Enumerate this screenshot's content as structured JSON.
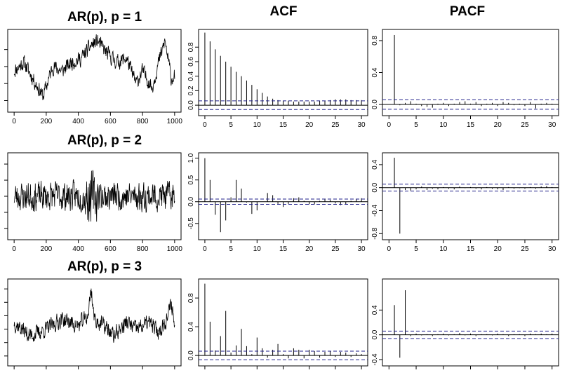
{
  "chart_data": [
    {
      "id": "ts1",
      "type": "line",
      "title": "AR(p), p = 1",
      "xlim": [
        0,
        1000
      ],
      "ylim": [
        -4,
        5
      ],
      "x_ticks": [
        0,
        200,
        400,
        600,
        800,
        1000
      ],
      "y_ticks": [
        -3,
        -1,
        1,
        3
      ],
      "x_tick_labels": [
        "0",
        "200",
        "400",
        "600",
        "800",
        "1000"
      ],
      "show_y_labels": false,
      "anchors": [
        [
          0,
          0.5
        ],
        [
          60,
          1.5
        ],
        [
          120,
          -0.5
        ],
        [
          180,
          -2.5
        ],
        [
          240,
          1.0
        ],
        [
          300,
          0.5
        ],
        [
          360,
          1.5
        ],
        [
          420,
          2.0
        ],
        [
          480,
          3.5
        ],
        [
          520,
          4.0
        ],
        [
          580,
          2.5
        ],
        [
          640,
          1.5
        ],
        [
          700,
          2.0
        ],
        [
          760,
          -1.0
        ],
        [
          800,
          0.5
        ],
        [
          860,
          -1.5
        ],
        [
          900,
          1.5
        ],
        [
          940,
          4.0
        ],
        [
          980,
          -0.5
        ],
        [
          1000,
          0.0
        ]
      ],
      "noise": 0.8,
      "seed": 11
    },
    {
      "id": "acf1",
      "type": "bar",
      "title": "ACF",
      "xlim": [
        0,
        30
      ],
      "ylim": [
        -0.1,
        1.0
      ],
      "x_ticks": [
        0,
        5,
        10,
        15,
        20,
        25,
        30
      ],
      "x_tick_labels": [
        "0",
        "5",
        "10",
        "15",
        "20",
        "25",
        "30"
      ],
      "y_ticks": [
        0.0,
        0.2,
        0.4,
        0.6,
        0.8
      ],
      "y_tick_labels": [
        "0.0",
        "0.2",
        "0.4",
        "0.6",
        "0.8"
      ],
      "lags": [
        0,
        1,
        2,
        3,
        4,
        5,
        6,
        7,
        8,
        9,
        10,
        11,
        12,
        13,
        14,
        15,
        16,
        17,
        18,
        19,
        20,
        21,
        22,
        23,
        24,
        25,
        26,
        27,
        28,
        29,
        30
      ],
      "values": [
        1.0,
        0.88,
        0.77,
        0.68,
        0.6,
        0.53,
        0.46,
        0.4,
        0.34,
        0.28,
        0.22,
        0.17,
        0.12,
        0.09,
        0.07,
        0.06,
        0.06,
        0.05,
        0.05,
        0.05,
        0.05,
        0.05,
        0.06,
        0.06,
        0.07,
        0.08,
        0.08,
        0.08,
        0.07,
        0.07,
        0.07
      ],
      "ci": [
        0.06,
        -0.06
      ]
    },
    {
      "id": "pacf1",
      "type": "bar",
      "title": "PACF",
      "xlim": [
        0,
        30
      ],
      "ylim": [
        -0.1,
        0.9
      ],
      "x_ticks": [
        0,
        5,
        10,
        15,
        20,
        25,
        30
      ],
      "x_tick_labels": [
        "0",
        "5",
        "10",
        "15",
        "20",
        "25",
        "30"
      ],
      "y_ticks": [
        0.0,
        0.4,
        0.8
      ],
      "y_tick_labels": [
        "0.0",
        "0.4",
        "0.8"
      ],
      "lags": [
        1,
        2,
        3,
        4,
        5,
        6,
        7,
        8,
        9,
        10,
        11,
        12,
        13,
        14,
        15,
        16,
        17,
        18,
        19,
        20,
        21,
        22,
        23,
        24,
        25,
        26,
        27,
        28,
        29,
        30
      ],
      "values": [
        0.87,
        -0.01,
        0.02,
        0.04,
        0.01,
        -0.02,
        -0.03,
        -0.04,
        0.01,
        0.02,
        -0.02,
        0.01,
        0.03,
        0.04,
        0.01,
        0.03,
        -0.02,
        0.01,
        0.02,
        -0.02,
        0.03,
        0.02,
        -0.01,
        0.01,
        -0.02,
        0.03,
        -0.05,
        0.01,
        0.02,
        0.01
      ],
      "ci": [
        0.06,
        -0.06
      ]
    },
    {
      "id": "ts2",
      "type": "line",
      "title": "AR(p), p = 2",
      "xlim": [
        0,
        1000
      ],
      "ylim": [
        -5,
        5
      ],
      "x_ticks": [
        0,
        200,
        400,
        600,
        800,
        1000
      ],
      "y_ticks": [
        -4,
        -2,
        0,
        2,
        4
      ],
      "x_tick_labels": [
        "0",
        "200",
        "400",
        "600",
        "800",
        "1000"
      ],
      "show_y_labels": false,
      "anchors": [
        [
          0,
          0
        ],
        [
          1000,
          0
        ]
      ],
      "noise": 1.6,
      "seed": 23,
      "burst": [
        [
          440,
          520,
          3.5
        ]
      ]
    },
    {
      "id": "acf2",
      "type": "bar",
      "title": "",
      "xlim": [
        0,
        30
      ],
      "ylim": [
        -0.8,
        1.05
      ],
      "x_ticks": [
        0,
        5,
        10,
        15,
        20,
        25,
        30
      ],
      "x_tick_labels": [
        "0",
        "5",
        "10",
        "15",
        "20",
        "25",
        "30"
      ],
      "y_ticks": [
        -0.5,
        0.0,
        0.5,
        1.0
      ],
      "y_tick_labels": [
        "-0.5",
        "0.0",
        "0.5",
        "1.0"
      ],
      "lags": [
        0,
        1,
        2,
        3,
        4,
        5,
        6,
        7,
        8,
        9,
        10,
        11,
        12,
        13,
        14,
        15,
        16,
        17,
        18,
        19,
        20,
        21,
        22,
        23,
        24,
        25,
        26,
        27,
        28,
        29,
        30
      ],
      "values": [
        1.0,
        0.5,
        -0.3,
        -0.7,
        -0.43,
        0.1,
        0.5,
        0.3,
        -0.02,
        -0.28,
        -0.2,
        0.0,
        0.2,
        0.15,
        -0.05,
        -0.12,
        -0.05,
        0.08,
        0.1,
        0.02,
        -0.06,
        -0.06,
        0.02,
        0.07,
        0.04,
        -0.04,
        -0.08,
        -0.06,
        0.02,
        0.06,
        0.08
      ],
      "ci": [
        0.06,
        -0.06
      ]
    },
    {
      "id": "pacf2",
      "type": "bar",
      "title": "",
      "xlim": [
        0,
        30
      ],
      "ylim": [
        -0.85,
        0.55
      ],
      "x_ticks": [
        0,
        5,
        10,
        15,
        20,
        25,
        30
      ],
      "x_tick_labels": [
        "0",
        "5",
        "10",
        "15",
        "20",
        "25",
        "30"
      ],
      "y_ticks": [
        -0.8,
        -0.4,
        0.0,
        0.4
      ],
      "y_tick_labels": [
        "-0.8",
        "-0.4",
        "0.0",
        "0.4"
      ],
      "lags": [
        1,
        2,
        3,
        4,
        5,
        6,
        7,
        8,
        9,
        10,
        11,
        12,
        13,
        14,
        15,
        16,
        17,
        18,
        19,
        20,
        21,
        22,
        23,
        24,
        25,
        26,
        27,
        28,
        29,
        30
      ],
      "values": [
        0.52,
        -0.8,
        -0.04,
        -0.05,
        -0.03,
        0.02,
        -0.04,
        -0.02,
        -0.03,
        0.01,
        -0.02,
        -0.03,
        0.02,
        -0.01,
        0.01,
        -0.02,
        -0.03,
        0.01,
        -0.02,
        -0.03,
        -0.04,
        0.01,
        -0.02,
        -0.01,
        -0.02,
        0.01,
        -0.02,
        0.02,
        0.03,
        0.01
      ],
      "ci": [
        0.06,
        -0.06
      ]
    },
    {
      "id": "ts3",
      "type": "line",
      "title": "AR(p), p = 3",
      "xlim": [
        0,
        1000
      ],
      "ylim": [
        -5,
        7
      ],
      "x_ticks": [
        0,
        200,
        400,
        600,
        800,
        1000
      ],
      "y_ticks": [
        -4,
        -2,
        0,
        2,
        4,
        6
      ],
      "x_tick_labels": [],
      "show_y_labels": false,
      "anchors": [
        [
          0,
          1
        ],
        [
          100,
          -1
        ],
        [
          200,
          0
        ],
        [
          300,
          1.5
        ],
        [
          400,
          0.5
        ],
        [
          460,
          2
        ],
        [
          480,
          6
        ],
        [
          500,
          1.5
        ],
        [
          560,
          0.5
        ],
        [
          620,
          -1
        ],
        [
          700,
          1
        ],
        [
          760,
          0
        ],
        [
          840,
          1
        ],
        [
          900,
          -0.5
        ],
        [
          960,
          2
        ],
        [
          980,
          4
        ],
        [
          1000,
          0.5
        ]
      ],
      "noise": 1.1,
      "seed": 37
    },
    {
      "id": "acf3",
      "type": "bar",
      "title": "",
      "xlim": [
        0,
        30
      ],
      "ylim": [
        -0.1,
        1.02
      ],
      "x_ticks": [
        0,
        5,
        10,
        15,
        20,
        25,
        30
      ],
      "x_tick_labels": [],
      "y_ticks": [
        0.0,
        0.4,
        0.8
      ],
      "y_tick_labels": [
        "0.0",
        "0.4",
        "0.8"
      ],
      "lags": [
        0,
        1,
        2,
        3,
        4,
        5,
        6,
        7,
        8,
        9,
        10,
        11,
        12,
        13,
        14,
        15,
        16,
        17,
        18,
        19,
        20,
        21,
        22,
        23,
        24,
        25,
        26,
        27,
        28,
        29,
        30
      ],
      "values": [
        1.0,
        0.47,
        0.07,
        0.27,
        0.62,
        0.04,
        0.14,
        0.37,
        0.13,
        0.02,
        0.25,
        0.1,
        -0.03,
        0.08,
        0.16,
        0.02,
        -0.04,
        0.1,
        0.08,
        -0.04,
        0.08,
        0.06,
        -0.03,
        0.05,
        0.06,
        -0.02,
        0.05,
        0.04,
        -0.02,
        0.03,
        0.02
      ],
      "ci": [
        0.06,
        -0.06
      ]
    },
    {
      "id": "pacf3",
      "type": "bar",
      "title": "",
      "xlim": [
        0,
        30
      ],
      "ylim": [
        -0.45,
        0.85
      ],
      "x_ticks": [
        0,
        5,
        10,
        15,
        20,
        25,
        30
      ],
      "x_tick_labels": [],
      "y_ticks": [
        -0.4,
        0.0,
        0.4
      ],
      "y_tick_labels": [
        "-0.4",
        "0.0",
        "0.4"
      ],
      "lags": [
        1,
        2,
        3,
        4,
        5,
        6,
        7,
        8,
        9,
        10,
        11,
        12,
        13,
        14,
        15,
        16,
        17,
        18,
        19,
        20,
        21,
        22,
        23,
        24,
        25,
        26,
        27,
        28,
        29,
        30
      ],
      "values": [
        0.48,
        -0.37,
        0.72,
        -0.02,
        0.02,
        -0.01,
        0.01,
        -0.02,
        0.01,
        0.02,
        -0.01,
        0.01,
        0.03,
        -0.01,
        0.02,
        -0.02,
        0.01,
        0.01,
        -0.01,
        0.02,
        0.01,
        -0.02,
        0.01,
        0.01,
        -0.02,
        0.02,
        0.01,
        0.02,
        0.01,
        0.02
      ],
      "ci": [
        0.06,
        -0.06
      ]
    }
  ]
}
